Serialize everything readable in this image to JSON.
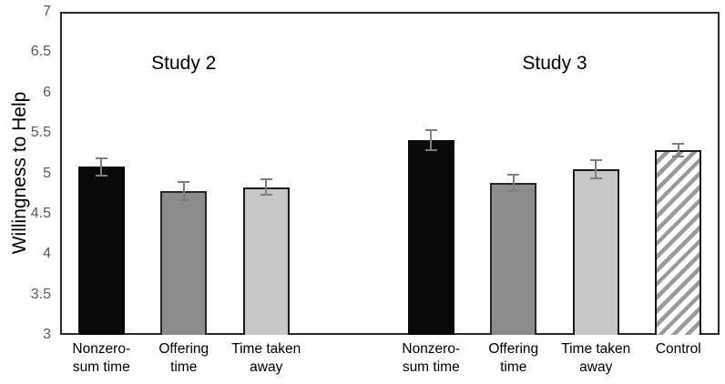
{
  "chart_data": {
    "type": "bar",
    "title": "",
    "xlabel": "",
    "ylabel": "Willingness to Help",
    "ylim": [
      3,
      7
    ],
    "ytick_step": 0.5,
    "grid": false,
    "legend_position": "none",
    "groups": [
      {
        "name": "Study 2",
        "bars": [
          {
            "label": "Nonzero-sum time",
            "label_lines": [
              "Nonzero-",
              "sum time"
            ],
            "value": 5.08,
            "error": 0.11,
            "style": "black"
          },
          {
            "label": "Offering time",
            "label_lines": [
              "Offering",
              "time"
            ],
            "value": 4.78,
            "error": 0.11,
            "style": "darkgray"
          },
          {
            "label": "Time taken away",
            "label_lines": [
              "Time taken",
              "away"
            ],
            "value": 4.83,
            "error": 0.1,
            "style": "lightgray"
          }
        ]
      },
      {
        "name": "Study 3",
        "bars": [
          {
            "label": "Nonzero-sum time",
            "label_lines": [
              "Nonzero-",
              "sum time"
            ],
            "value": 5.41,
            "error": 0.12,
            "style": "black"
          },
          {
            "label": "Offering time",
            "label_lines": [
              "Offering",
              "time"
            ],
            "value": 4.88,
            "error": 0.1,
            "style": "darkgray"
          },
          {
            "label": "Time taken away",
            "label_lines": [
              "Time taken",
              "away"
            ],
            "value": 5.05,
            "error": 0.11,
            "style": "lightgray"
          },
          {
            "label": "Control",
            "label_lines": [
              "Control"
            ],
            "value": 5.29,
            "error": 0.08,
            "style": "hatched"
          }
        ]
      }
    ],
    "styles": {
      "black": {
        "fill": "#0a0a0a",
        "border": "#0a0a0a"
      },
      "darkgray": {
        "fill": "#8c8c8c",
        "border": "#262626"
      },
      "lightgray": {
        "fill": "#c7c7c7",
        "border": "#1a1a1a"
      },
      "hatched": {
        "fill": "hatch",
        "border": "#1a1a1a"
      }
    },
    "colors": {
      "error_bar": "#7f7f7f",
      "axis_line": "#2b2b2b",
      "tick_label": "#595959",
      "text": "#000000",
      "hatch_stripe": "#9a9a9a",
      "background": "#ffffff"
    }
  }
}
